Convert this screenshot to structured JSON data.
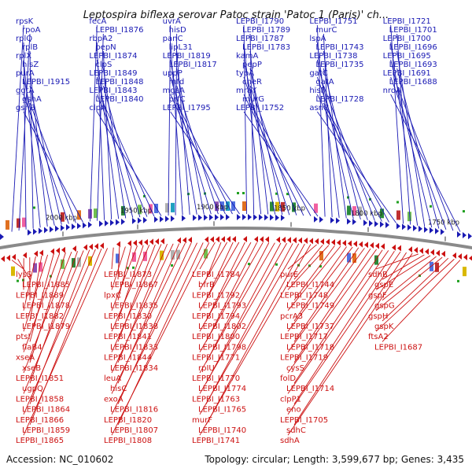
{
  "title": "Leptospira biflexa serovar Patoc strain 'Patoc 1 (Paris)' ch...",
  "footer": {
    "accession": "Accession: NC_010602",
    "topology": "Topology: circular; Length: 3,599,677 bp; Genes: 3,435"
  },
  "colors": {
    "forward": "#1a1ab4",
    "reverse": "#cc1111",
    "backbone": "#888888"
  },
  "scale_ticks": [
    "2000 kbp",
    "1950 kbp",
    "1900 kbp",
    "1850 kbp",
    "1800 kbp",
    "1750 kbp"
  ],
  "top_labels": [
    "rpsK",
    "rpoA",
    "rplQ",
    "rplB",
    "rplX",
    "hisZ",
    "purA",
    "LEPBI_I1915",
    "ggtA",
    "gshA",
    "gshB",
    "fecA",
    "LEPBI_I1876",
    "rbpA2",
    "pepN",
    "LEPBI_I1874",
    "clpS",
    "LEPBI_I1849",
    "LEPBI_I1848",
    "LEPBI_I1843",
    "LEPBI_I1840",
    "clpA",
    "uvrA",
    "hisD",
    "panC",
    "lipL31",
    "LEPBI_I1819",
    "LEPBI_I1817",
    "uppP",
    "mfd",
    "mgsA",
    "prfC",
    "LEPBI_I1795",
    "LEPBI_I1790",
    "LEPBI_I1789",
    "LEPBI_I1787",
    "LEPBI_I1783",
    "kamA",
    "pepP",
    "typA",
    "cheR",
    "mraY",
    "murG",
    "LEPBI_I1752",
    "LEPBI_I1751",
    "murC",
    "lspA",
    "LEPBI_I1743",
    "LEPBI_I1738",
    "LEPBI_I1735",
    "gatC",
    "gatA",
    "hisF",
    "LEPBI_I1728",
    "asnC",
    "LEPBI_I1721",
    "LEPBI_I1701",
    "LEPBI_I1700",
    "LEPBI_I1696",
    "LEPBI_I1695",
    "LEPBI_I1693",
    "LEPBI_I1691",
    "LEPBI_I1688",
    "nrdA"
  ],
  "bottom_labels": [
    "lysS",
    "LEPBI_I1885",
    "LEPBI_I1889",
    "LEPBI_I1878",
    "LEPBI_I1882",
    "LEPBI_I1879",
    "ptsI",
    "flaB4",
    "xseA",
    "xseB",
    "LEPBI_I1851",
    "ugpQ",
    "LEPBI_I1858",
    "LEPBI_I1864",
    "LEPBI_I1866",
    "LEPBI_I1859",
    "LEPBI_I1865",
    "LEPBI_I1873",
    "LEPBI_I1867",
    "lpxC",
    "LEPBI_I1835",
    "LEPBI_I1830",
    "LEPBI_I1838",
    "LEPBI_I1841",
    "LEPBI_I1833",
    "LEPBI_I1844",
    "LEPBI_I1834",
    "leuA",
    "hisC",
    "exoA",
    "LEPBI_I1816",
    "LEPBI_I1820",
    "LEPBI_I1807",
    "LEPBI_I1808",
    "LEPBI_I1784",
    "bfrB",
    "LEPBI_I1792",
    "LEPBI_I1793",
    "LEPBI_I1794",
    "LEPBI_I1802",
    "LEPBI_I1800",
    "LEPBI_I1798",
    "LEPBI_I1771",
    "rpIU",
    "LEPBI_I1770",
    "LEPBI_I1774",
    "LEPBI_I1763",
    "LEPBI_I1765",
    "murF",
    "LEPBI_I1740",
    "LEPBI_I1741",
    "purE",
    "LEPBI_I1744",
    "LEPBI_I1748",
    "LEPBI_I1749",
    "pcrA3",
    "LEPBI_I1737",
    "LEPBI_I1717",
    "LEPBI_I1718",
    "LEPBI_I1719",
    "cysS",
    "folD",
    "LEPBI_I1714",
    "clpP1",
    "eno",
    "LEPBI_I1705",
    "sdhC",
    "sdhA",
    "sdhB",
    "gspE",
    "gspF",
    "gspG",
    "gspH",
    "gspK",
    "ftsA2",
    "LEPBI_I1687"
  ]
}
